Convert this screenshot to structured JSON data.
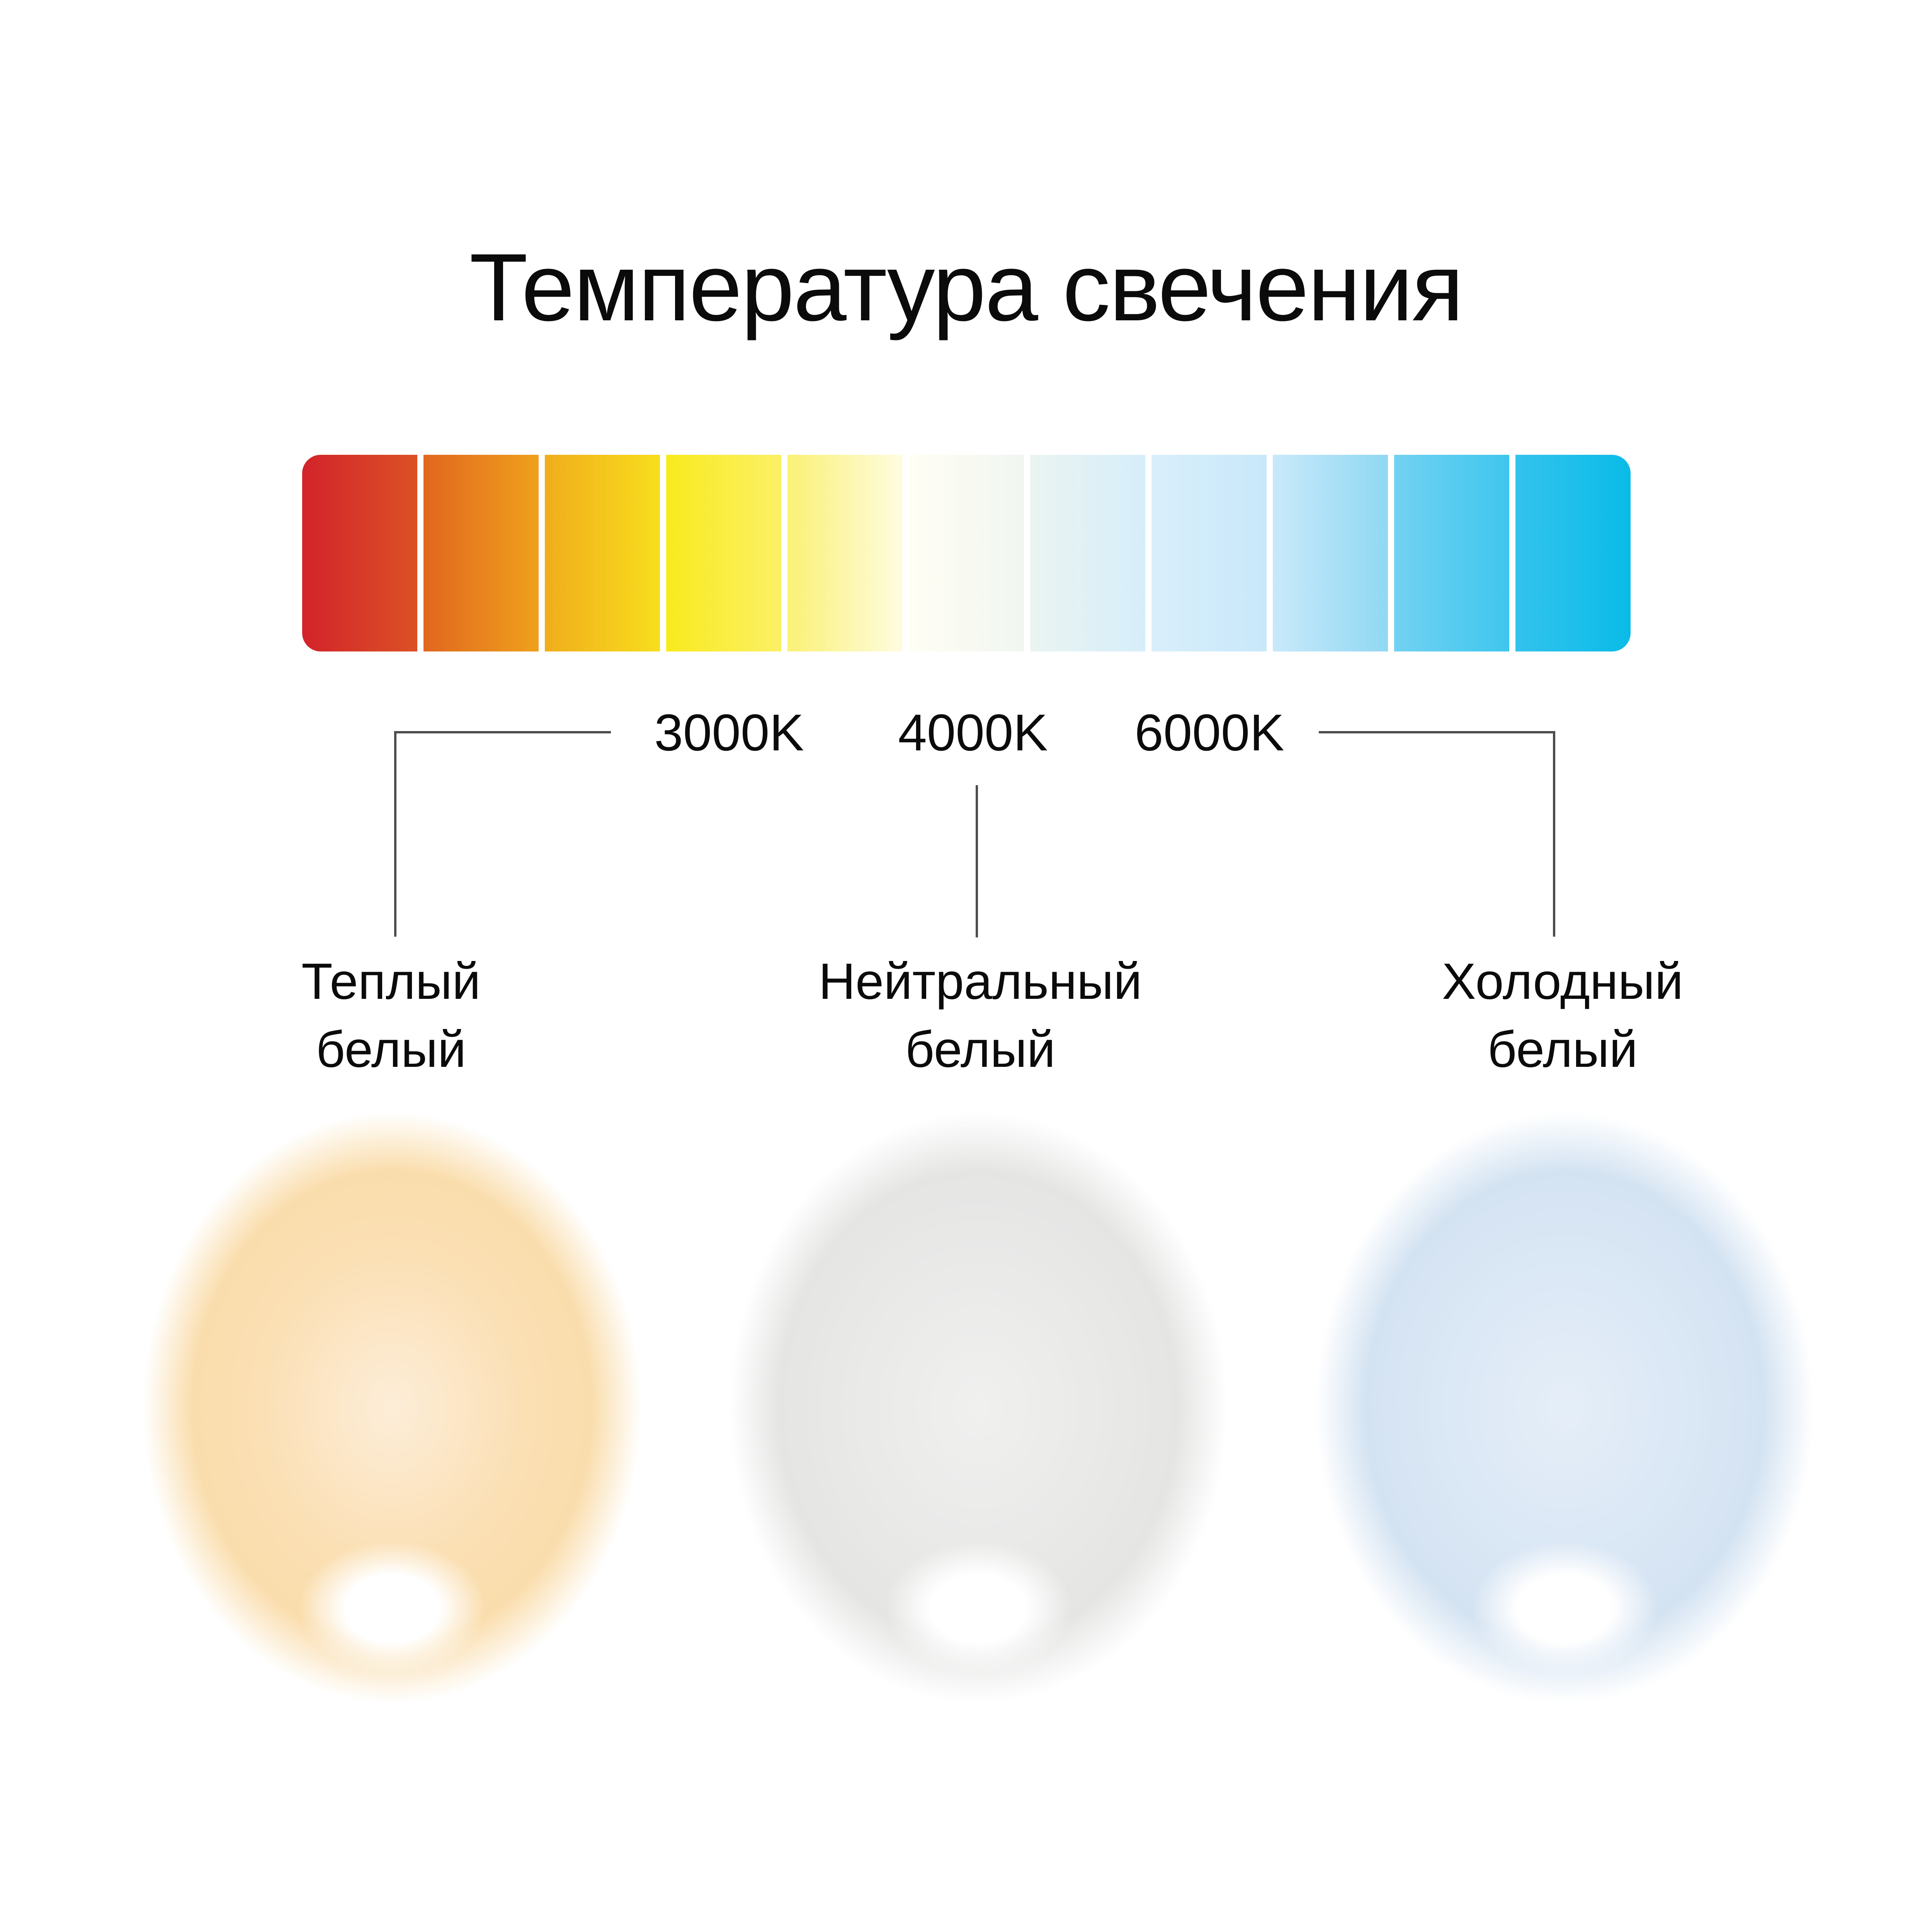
{
  "title": "Температура свечения",
  "colors": {
    "background": "#FFFFFF",
    "text": "#0B0B0B",
    "connector_line": "#4D4D4F",
    "bar_gap": "#FFFFFF"
  },
  "temperature_bar": {
    "segments": [
      {
        "from": "#D2232A",
        "to": "#DC5126"
      },
      {
        "from": "#E1661F",
        "to": "#EFA11C"
      },
      {
        "from": "#F0AD1B",
        "to": "#F8DE1E"
      },
      {
        "from": "#F9EA1D",
        "to": "#FAF067"
      },
      {
        "from": "#FAF175",
        "to": "#FEFCE0"
      },
      {
        "from": "#FFFEF4",
        "to": "#F1F6F1"
      },
      {
        "from": "#EAF4F1",
        "to": "#D6EEFA"
      },
      {
        "from": "#D9EFFB",
        "to": "#C8E8F9"
      },
      {
        "from": "#C9E9FA",
        "to": "#90D8F3"
      },
      {
        "from": "#72D2F2",
        "to": "#3FC6EE"
      },
      {
        "from": "#33C3ED",
        "to": "#0ABBE8"
      }
    ]
  },
  "scale_labels": [
    {
      "text": "3000K"
    },
    {
      "text": "4000K"
    },
    {
      "text": "6000K"
    }
  ],
  "categories": [
    {
      "id": "warm",
      "line1": "Теплый",
      "line2": "белый",
      "glow": {
        "inner": "#FDEDD8",
        "mid": "#FBE0B5",
        "outer": "#FADDAC",
        "hotspot": "#FFFFFF"
      }
    },
    {
      "id": "neutral",
      "line1": "Нейтральный",
      "line2": "белый",
      "glow": {
        "inner": "#F0F0EF",
        "mid": "#E9E9E8",
        "outer": "#E5E5E4",
        "hotspot": "#FFFFFF"
      }
    },
    {
      "id": "cold",
      "line1": "Холодный",
      "line2": "белый",
      "glow": {
        "inner": "#E5EEF8",
        "mid": "#DAE7F5",
        "outer": "#D4E3F2",
        "hotspot": "#FFFFFF"
      }
    }
  ]
}
